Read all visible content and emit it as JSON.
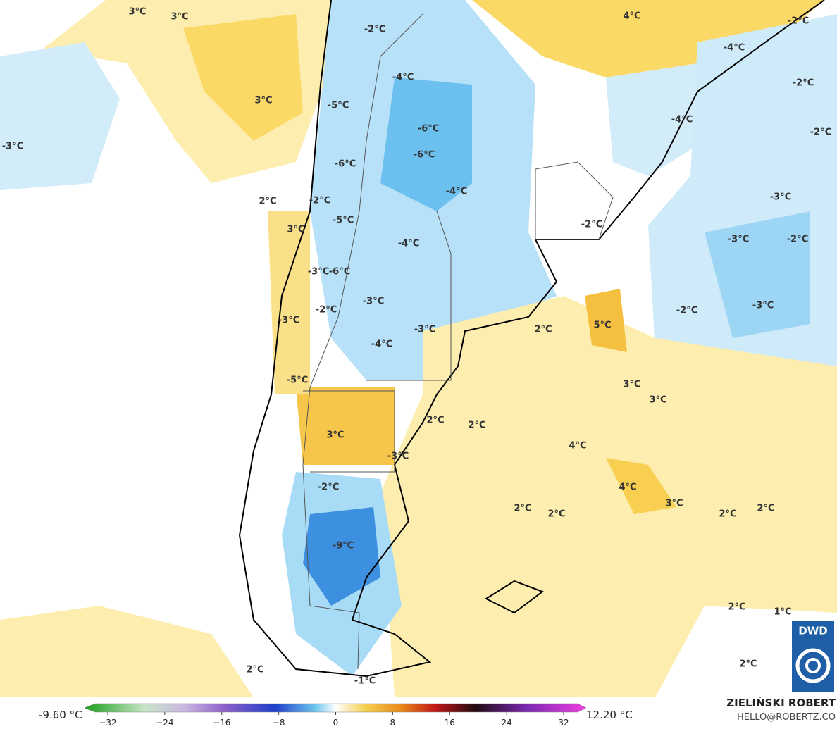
{
  "map": {
    "labels": [
      "3°C",
      "3°C",
      "3°C",
      "2°C",
      "3°C",
      "-3°C",
      "-2°C",
      "-4°C",
      "-5°C",
      "-6°C",
      "-6°C",
      "-6°C",
      "-4°C",
      "-2°C",
      "-5°C",
      "-4°C",
      "-3°C",
      "-6°C",
      "-3°C",
      "-2°C",
      "-3°C",
      "-3°C",
      "-4°C",
      "-5°C",
      "3°C",
      "2°C",
      "2°C",
      "-3°C",
      "-2°C",
      "-9°C",
      "4°C",
      "-2°C",
      "-4°C",
      "-2°C",
      "-4°C",
      "-2°C",
      "-3°C",
      "-2°C",
      "-3°C",
      "-2°C",
      "-2°C",
      "-3°C",
      "2°C",
      "5°C",
      "3°C",
      "3°C",
      "4°C",
      "4°C",
      "3°C",
      "2°C",
      "2°C",
      "2°C",
      "2°C",
      "2°C",
      "1°C",
      "2°C",
      "2°C",
      "-1°C"
    ]
  },
  "logo": "DWD",
  "legend": {
    "min_label": "-9.60 °C",
    "max_label": "12.20 °C",
    "ticks": [
      "−32",
      "−24",
      "−16",
      "−8",
      "0",
      "8",
      "16",
      "24",
      "32"
    ]
  },
  "credits": {
    "author": "ZIELIŃSKI ROBERT",
    "contact": "HELLO@ROBERTZ.CO"
  }
}
